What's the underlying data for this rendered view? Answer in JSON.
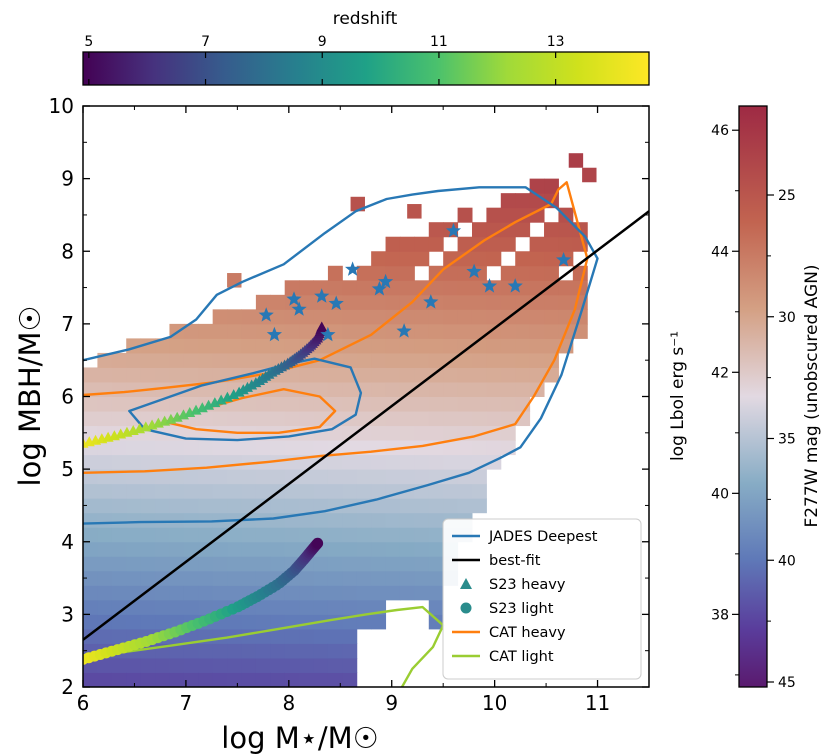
{
  "chart_data": {
    "type": "scatter",
    "title": "",
    "xlabel": "log M⋆/M☉",
    "ylabel": "log MBH/M☉",
    "xlim": [
      6,
      11.5
    ],
    "ylim": [
      2,
      10
    ],
    "xticks": [
      "6",
      "7",
      "8",
      "9",
      "10",
      "11"
    ],
    "yticks": [
      "2",
      "3",
      "4",
      "5",
      "6",
      "7",
      "8",
      "9",
      "10"
    ],
    "colorbar_top": {
      "label": "redshift",
      "range": [
        4.9,
        14.6
      ],
      "ticks": [
        "5",
        "7",
        "9",
        "11",
        "13"
      ],
      "colormap": "viridis"
    },
    "colorbar_right": {
      "left_label": "log Lbol erg s⁻¹",
      "left_ticks": [
        "38",
        "40",
        "42",
        "44",
        "46"
      ],
      "right_label": "F277W mag (unobscured AGN)",
      "right_ticks": [
        "25",
        "30",
        "35",
        "40",
        "45"
      ],
      "range": [
        36.8,
        46.4
      ],
      "colormap": "twilight"
    },
    "legend": {
      "position": "lower-right",
      "entries": [
        {
          "label": "JADES Deepest",
          "marker": "line",
          "color": "#2878b5"
        },
        {
          "label": "best-fit",
          "marker": "line",
          "color": "#000000"
        },
        {
          "label": "S23 heavy",
          "marker": "triangle",
          "color": "#2a8c8c"
        },
        {
          "label": "S23 light",
          "marker": "circle",
          "color": "#2a8c8c"
        },
        {
          "label": "CAT heavy",
          "marker": "line",
          "color": "#ff7f0e"
        },
        {
          "label": "CAT light",
          "marker": "line",
          "color": "#9acd32"
        }
      ]
    },
    "best_fit_line": {
      "x": [
        6,
        11.5
      ],
      "y": [
        2.65,
        8.55
      ]
    },
    "stars": {
      "name": "observed AGN",
      "color": "#2878b5",
      "x": [
        7.78,
        7.86,
        8.05,
        8.1,
        8.32,
        8.38,
        8.46,
        8.62,
        8.88,
        8.94,
        9.12,
        9.38,
        9.6,
        9.8,
        9.95,
        10.2,
        10.67
      ],
      "y": [
        7.12,
        6.85,
        7.34,
        7.2,
        7.38,
        6.85,
        7.28,
        7.75,
        7.48,
        7.58,
        6.9,
        7.3,
        8.28,
        7.72,
        7.52,
        7.52,
        7.88
      ]
    },
    "s23_heavy_track": {
      "x": [
        6.0,
        6.3,
        6.6,
        6.9,
        7.2,
        7.5,
        7.7,
        7.85,
        8.0,
        8.1,
        8.2,
        8.28,
        8.32
      ],
      "y": [
        5.35,
        5.45,
        5.57,
        5.7,
        5.86,
        6.04,
        6.2,
        6.34,
        6.46,
        6.56,
        6.68,
        6.8,
        6.95
      ],
      "z": [
        14.2,
        13.3,
        12.4,
        11.5,
        10.6,
        9.6,
        8.8,
        8.2,
        7.5,
        6.9,
        6.2,
        5.6,
        5.0
      ]
    },
    "s23_light_track": {
      "x": [
        6.0,
        6.3,
        6.6,
        6.9,
        7.2,
        7.5,
        7.7,
        7.9,
        8.05,
        8.15,
        8.22,
        8.28
      ],
      "y": [
        2.38,
        2.5,
        2.62,
        2.76,
        2.92,
        3.1,
        3.25,
        3.42,
        3.6,
        3.76,
        3.88,
        3.98
      ],
      "z": [
        14.2,
        13.3,
        12.4,
        11.5,
        10.6,
        9.6,
        8.8,
        8.0,
        7.2,
        6.4,
        5.7,
        5.0
      ]
    },
    "contours": {
      "jades_deepest_outer": {
        "x": [
          6.0,
          6.45,
          6.85,
          7.1,
          7.3,
          7.55,
          7.95,
          8.35,
          8.65,
          8.95,
          9.2,
          9.45,
          9.85,
          10.3,
          10.6,
          10.88,
          11.0,
          10.85,
          10.65,
          10.45,
          10.25,
          10.05,
          9.75,
          9.35,
          8.85,
          8.35,
          7.85,
          7.25,
          6.55,
          6.0
        ],
        "y": [
          6.5,
          6.65,
          6.82,
          7.06,
          7.4,
          7.58,
          7.82,
          8.25,
          8.55,
          8.72,
          8.78,
          8.83,
          8.88,
          8.88,
          8.6,
          8.2,
          7.9,
          7.2,
          6.3,
          5.7,
          5.3,
          5.15,
          4.95,
          4.78,
          4.58,
          4.42,
          4.32,
          4.28,
          4.27,
          4.25
        ]
      },
      "jades_deepest_inner": {
        "x": [
          6.45,
          6.75,
          7.15,
          7.65,
          8.0,
          8.25,
          8.6,
          8.7,
          8.65,
          8.42,
          8.0,
          7.5,
          7.0,
          6.6,
          6.45
        ],
        "y": [
          5.8,
          5.95,
          6.15,
          6.32,
          6.45,
          6.52,
          6.4,
          6.05,
          5.75,
          5.55,
          5.45,
          5.4,
          5.42,
          5.55,
          5.8
        ]
      },
      "cat_heavy_outer": {
        "x": [
          6.0,
          6.4,
          6.8,
          7.3,
          7.8,
          8.3,
          8.8,
          9.2,
          9.5,
          9.9,
          10.2,
          10.55,
          10.62,
          10.7,
          10.9,
          10.78,
          10.58,
          10.38,
          10.2,
          9.8,
          9.3,
          8.8,
          8.3,
          7.8,
          7.2,
          6.6,
          6.0
        ],
        "y": [
          6.02,
          6.06,
          6.12,
          6.2,
          6.32,
          6.5,
          6.85,
          7.3,
          7.75,
          8.15,
          8.4,
          8.65,
          8.85,
          8.95,
          7.9,
          7.2,
          6.5,
          6.0,
          5.62,
          5.45,
          5.32,
          5.24,
          5.18,
          5.1,
          5.02,
          4.97,
          4.95
        ]
      },
      "cat_heavy_inner": {
        "x": [
          6.8,
          7.15,
          7.55,
          7.95,
          8.3,
          8.45,
          8.3,
          7.9,
          7.5,
          7.1,
          6.8
        ],
        "y": [
          5.65,
          5.82,
          5.98,
          6.1,
          6.0,
          5.8,
          5.58,
          5.5,
          5.5,
          5.55,
          5.65
        ]
      },
      "cat_light": {
        "x": [
          6.0,
          6.4,
          6.9,
          7.4,
          7.9,
          8.4,
          8.75,
          9.05,
          9.3,
          9.5,
          9.4,
          9.2,
          9.1
        ],
        "y": [
          2.42,
          2.48,
          2.58,
          2.68,
          2.8,
          2.92,
          3.0,
          3.06,
          3.1,
          2.85,
          2.55,
          2.25,
          2.0
        ]
      }
    }
  }
}
